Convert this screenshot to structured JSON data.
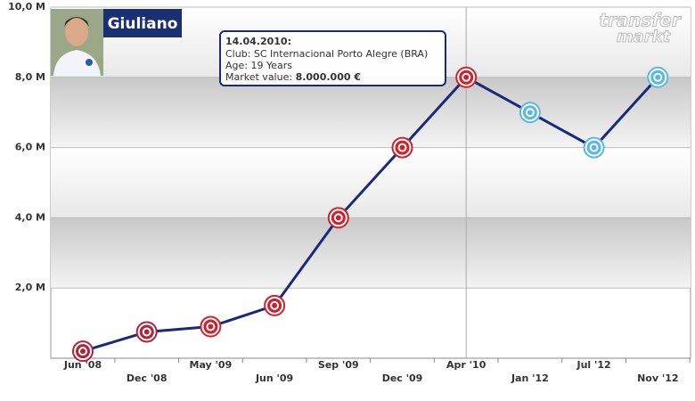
{
  "chart_data": {
    "type": "line",
    "title": "Giuliano",
    "logo": [
      "transfer",
      "markt"
    ],
    "tooltip": {
      "date": "14.04.2010:",
      "club": "Club: SC Internacional Porto Alegre (BRA)",
      "age": "Age: 19 Years",
      "value_label": "Market value:",
      "value": "8.000.000 €"
    },
    "categories": [
      "Jun '08",
      "Dec '08",
      "May '09",
      "Jun '09",
      "Sep '09",
      "Dec '09",
      "Apr '10",
      "Jan '12",
      "Jul '12",
      "Nov '12"
    ],
    "series": [
      {
        "color": "#1a2a7a",
        "values": [
          0.2,
          0.75,
          0.9,
          1.5,
          4.0,
          6.0,
          8.0,
          7.0,
          6.0,
          8.0
        ]
      }
    ],
    "point_colors": [
      "#b0243a",
      "#b0243a",
      "#d0202a",
      "#d0202a",
      "#d0202a",
      "#d0202a",
      "#d0202a",
      "#58b8e0",
      "#58b8e0",
      "#58b8e0"
    ],
    "ylim": [
      0,
      10
    ],
    "yticks": [
      {
        "value": 2,
        "label": "2,0 M"
      },
      {
        "value": 4,
        "label": "4,0 M"
      },
      {
        "value": 6,
        "label": "6,0 M"
      },
      {
        "value": 8,
        "label": "8,0 M"
      },
      {
        "value": 10,
        "label": "10,0 M"
      }
    ],
    "grid": true
  }
}
